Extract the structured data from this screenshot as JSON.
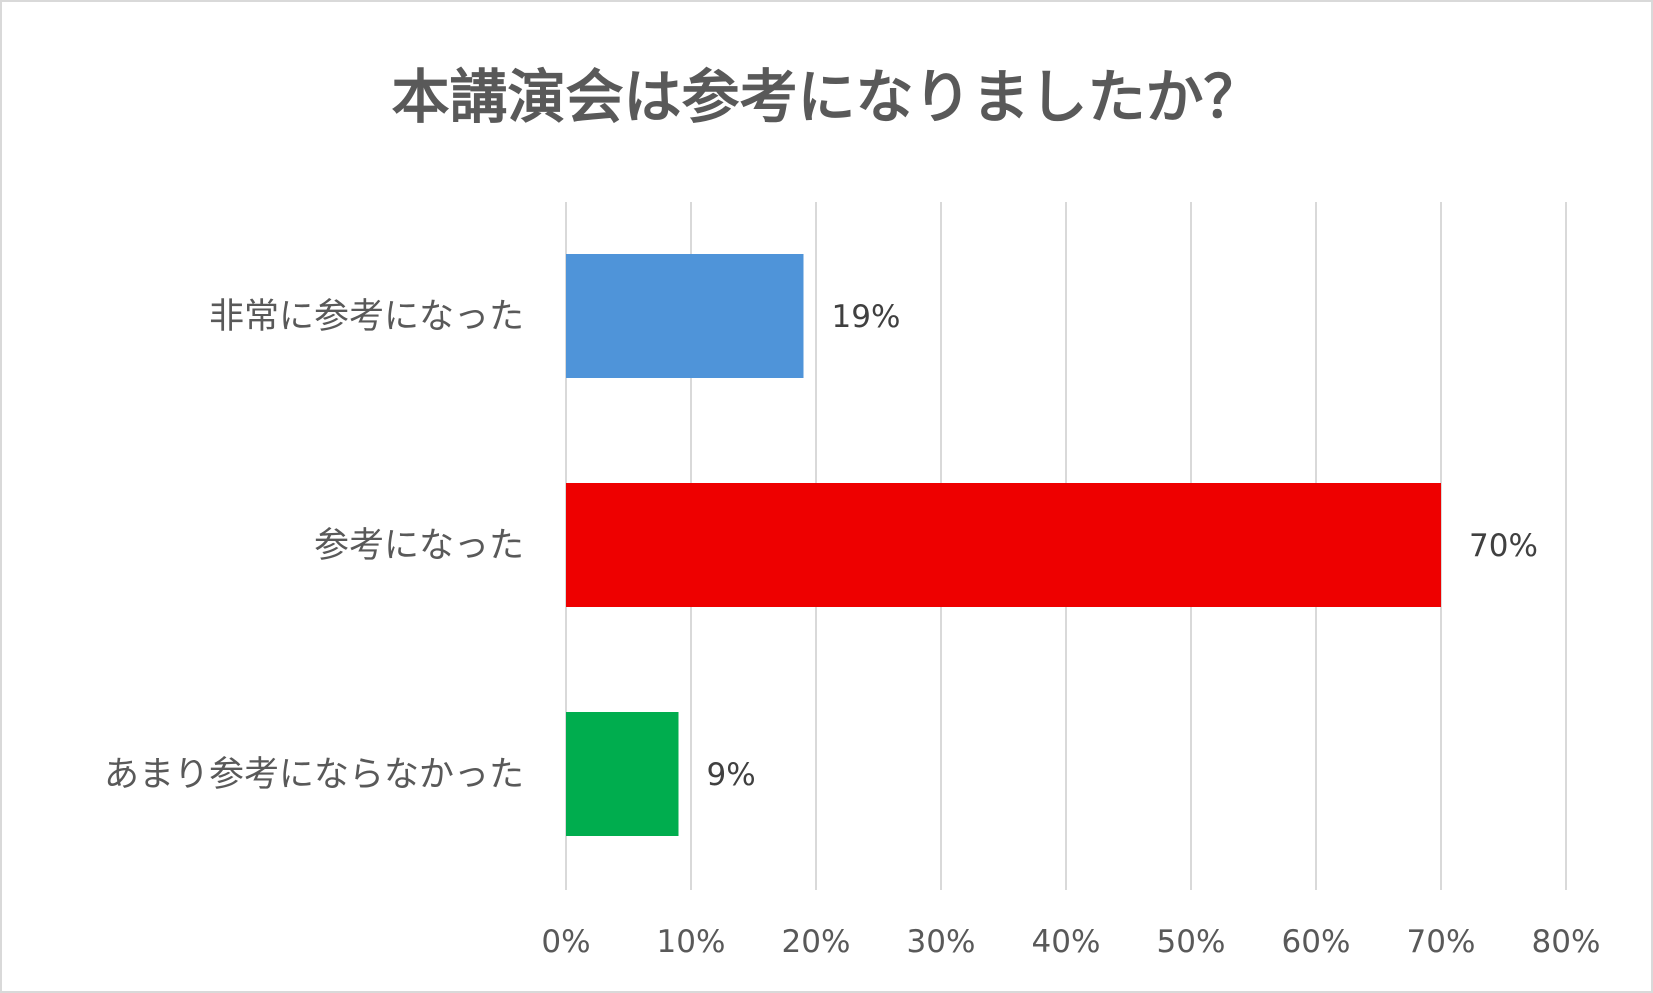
{
  "chart_data": {
    "type": "bar",
    "orientation": "horizontal",
    "title": "本講演会は参考になりましたか？",
    "categories": [
      "非常に参考になった",
      "参考になった",
      "あまり参考にならなかった"
    ],
    "values": [
      19,
      70,
      9
    ],
    "data_labels": [
      "19%",
      "70%",
      "9%"
    ],
    "colors": [
      "#4f94d9",
      "#ee0000",
      "#00ad4e"
    ],
    "xlim": [
      0,
      80
    ],
    "xticks": [
      0,
      10,
      20,
      30,
      40,
      50,
      60,
      70,
      80
    ],
    "xtick_labels": [
      "0%",
      "10%",
      "20%",
      "30%",
      "40%",
      "50%",
      "60%",
      "70%",
      "80%"
    ],
    "grid": true,
    "legend": "none"
  }
}
